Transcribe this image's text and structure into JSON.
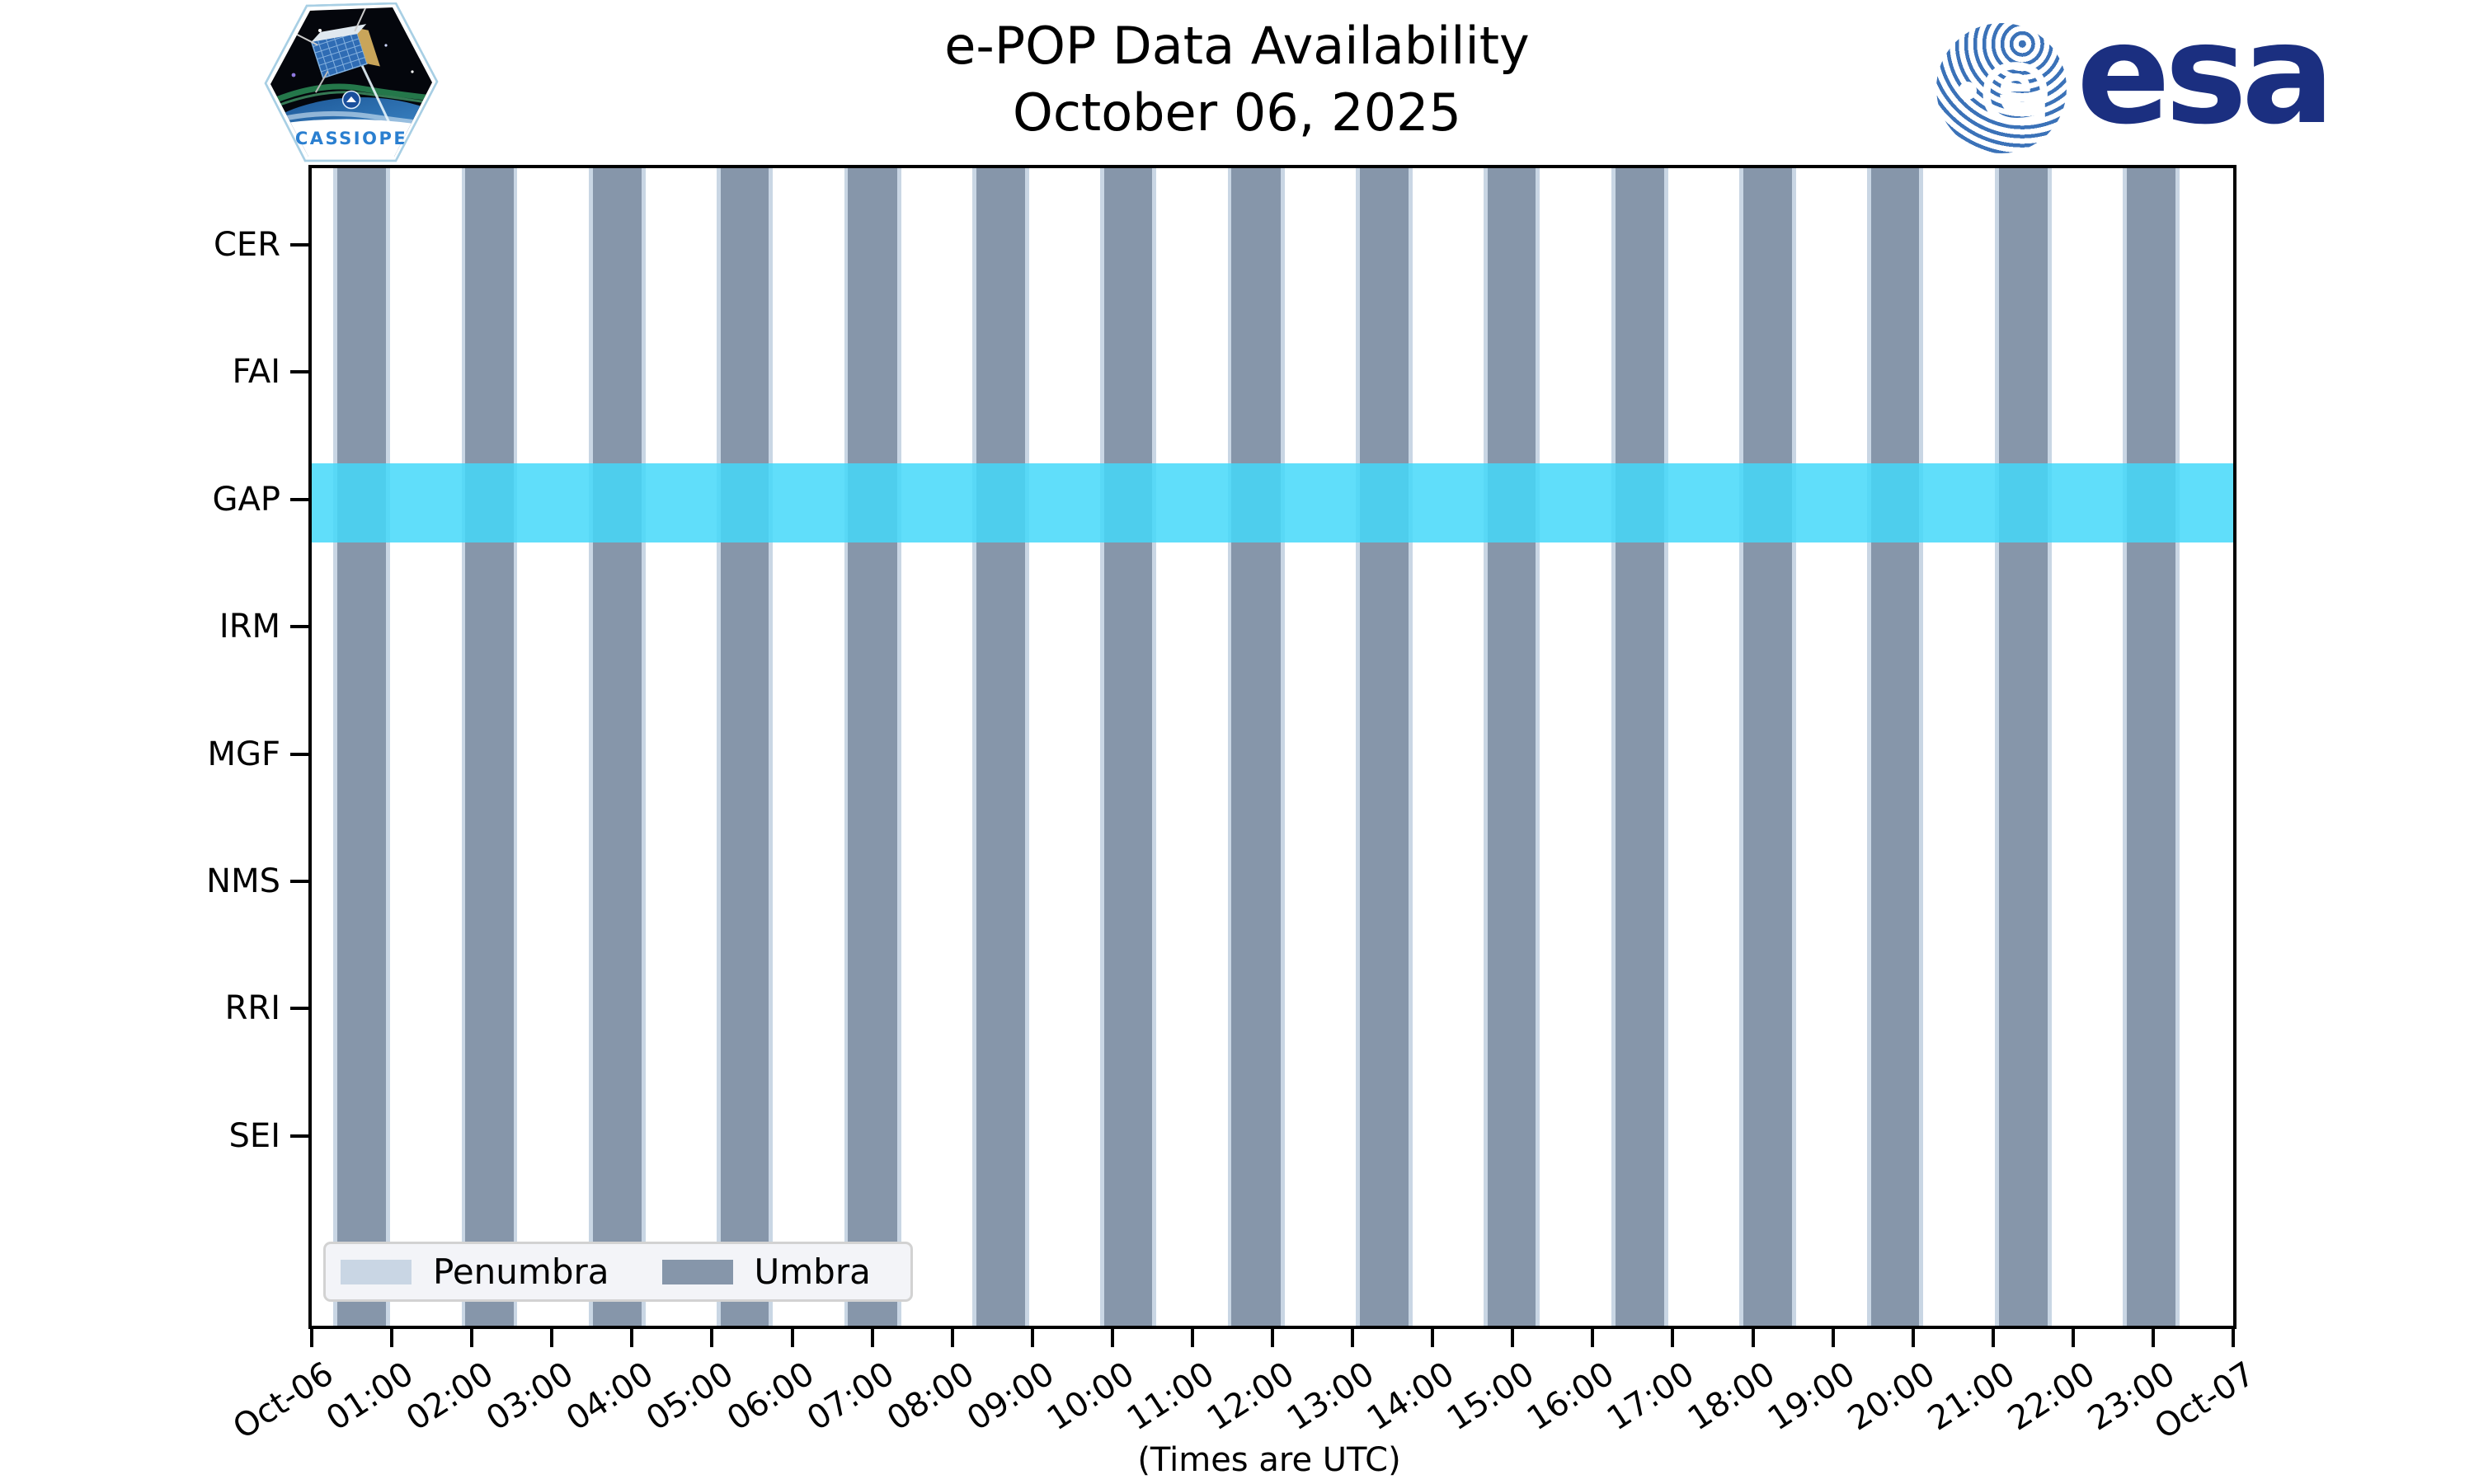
{
  "header": {
    "title_line1": "e-POP Data Availability",
    "title_line2": "October 06, 2025",
    "cassiope_label": "CASSIOPE",
    "esa_wordmark": "esa"
  },
  "chart_data": {
    "type": "bar",
    "subtype": "availability-timeline",
    "title": "e-POP Data Availability",
    "subtitle": "October 06, 2025",
    "xlabel": "(Times are UTC)",
    "x_axis": {
      "unit": "hours UTC",
      "range": [
        0,
        24
      ],
      "tick_hours": [
        0,
        1,
        2,
        3,
        4,
        5,
        6,
        7,
        8,
        9,
        10,
        11,
        12,
        13,
        14,
        15,
        16,
        17,
        18,
        19,
        20,
        21,
        22,
        23,
        24
      ],
      "tick_labels": [
        "Oct-06",
        "01:00",
        "02:00",
        "03:00",
        "04:00",
        "05:00",
        "06:00",
        "07:00",
        "08:00",
        "09:00",
        "10:00",
        "11:00",
        "12:00",
        "13:00",
        "14:00",
        "15:00",
        "16:00",
        "17:00",
        "18:00",
        "19:00",
        "20:00",
        "21:00",
        "22:00",
        "23:00",
        "Oct-07"
      ]
    },
    "rows": [
      "CER",
      "FAI",
      "GAP",
      "IRM",
      "MGF",
      "NMS",
      "RRI",
      "SEI"
    ],
    "legend": [
      {
        "label": "Penumbra",
        "color": "#c9d6e4"
      },
      {
        "label": "Umbra",
        "color": "#8696aa"
      }
    ],
    "legend_position": "lower left",
    "grid": false,
    "umbra_intervals_hours": [
      [
        0.32,
        0.93
      ],
      [
        1.92,
        2.52
      ],
      [
        3.51,
        4.12
      ],
      [
        5.11,
        5.71
      ],
      [
        6.7,
        7.31
      ],
      [
        8.3,
        8.91
      ],
      [
        9.9,
        10.5
      ],
      [
        11.49,
        12.1
      ],
      [
        13.09,
        13.7
      ],
      [
        14.69,
        15.29
      ],
      [
        16.28,
        16.89
      ],
      [
        17.88,
        18.49
      ],
      [
        19.48,
        20.08
      ],
      [
        21.07,
        21.68
      ],
      [
        22.67,
        23.28
      ]
    ],
    "penumbra_edge_hours": 0.05,
    "gap_band": {
      "row": "GAP",
      "x_range_hours": [
        0,
        24
      ],
      "color": "#44d8f9",
      "opacity": 0.85
    },
    "colors": {
      "umbra": "#8696aa",
      "penumbra": "#c9d6e4",
      "gap_band": "#44d8f9",
      "axis": "#000000",
      "legend_bg": "#f3f4f8"
    }
  }
}
